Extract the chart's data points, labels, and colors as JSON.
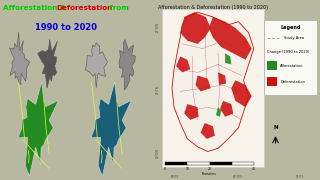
{
  "title_left_green1": "Afforestation & ",
  "title_left_red": "Deforestation",
  "title_left_green2": " from",
  "title_left_line2": "1990 to 2020",
  "title_left_color1": "#00cc00",
  "title_left_color2": "#dd0000",
  "title_left_color3": "#0000dd",
  "title_right": "Afforestation & Deforestation (1990 to 2020)",
  "bg_color": "#b8b8a0",
  "left_bg": "#b8b8a0",
  "right_outer_bg": "#d8d4c0",
  "right_map_bg": "#f8f4ec",
  "right_map_border": "#cccccc",
  "legend_title": "Legend",
  "legend_study_area": "Study Area",
  "legend_change": "Change (1990 to 2020)",
  "legend_afforestation": "Afforestation",
  "legend_deforestation": "Deforestation",
  "afforestation_color": "#228B22",
  "deforestation_color": "#cc1111",
  "north_text": "N",
  "gray_colors": [
    "#999999",
    "#555555",
    "#aaaaaa",
    "#888888"
  ],
  "green_map_color": "#228B22",
  "blue_map_color": "#1a5f7a"
}
